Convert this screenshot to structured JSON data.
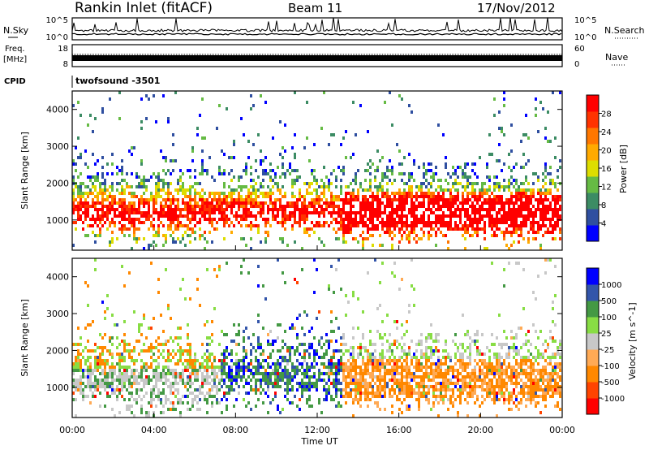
{
  "header": {
    "station": "Rankin Inlet (fitACF)",
    "beam": "Beam 11",
    "date": "17/Nov/2012"
  },
  "nsky_panel": {
    "left_label": "N.Sky",
    "left_ticks": [
      "10^5",
      "10^0"
    ],
    "right_ticks": [
      "10^5",
      "10^0"
    ],
    "right_label": "N.Search"
  },
  "freq_panel": {
    "left_label_1": "Freq.",
    "left_label_2": "[MHz]",
    "left_ticks": [
      "18",
      "8"
    ],
    "right_ticks": [
      "60",
      "0"
    ],
    "right_label": "Nave"
  },
  "cpid": {
    "label": "CPID",
    "value": "twofsound -3501"
  },
  "colors": {
    "power_scale": [
      "#0000ff",
      "#2f4fa0",
      "#3c8c64",
      "#66bb44",
      "#dddd00",
      "#ffaa00",
      "#ff7700",
      "#ff3300",
      "#ff0000"
    ],
    "velocity_scale": [
      "#ff0000",
      "#ff4400",
      "#ff8800",
      "#ffaa55",
      "#c8c8c8",
      "#88dd44",
      "#449944",
      "#3355aa",
      "#0000ff"
    ],
    "frame": "#000000"
  },
  "chart_data": [
    {
      "type": "heatmap",
      "title": "Power",
      "ylabel": "Slant Range [km]",
      "xlabel": "",
      "xlim": [
        "00:00",
        "00:00"
      ],
      "ylim": [
        180,
        4500
      ],
      "y_ticks": [
        "1000",
        "2000",
        "3000",
        "4000"
      ],
      "colorbar": {
        "label": "Power [dB]",
        "ticks": [
          "28",
          "24",
          "20",
          "16",
          "12",
          "8",
          "4"
        ],
        "range": [
          0,
          30
        ]
      }
    },
    {
      "type": "heatmap",
      "title": "Velocity",
      "ylabel": "Slant Range [km]",
      "xlabel": "Time UT",
      "x_ticks": [
        "00:00",
        "04:00",
        "08:00",
        "12:00",
        "16:00",
        "20:00",
        "00:00"
      ],
      "ylim": [
        180,
        4500
      ],
      "y_ticks": [
        "1000",
        "2000",
        "3000",
        "4000"
      ],
      "colorbar": {
        "label": "Velocity [m s^-1]",
        "ticks": [
          "1000",
          "500",
          "100",
          "25",
          "-25",
          "-100",
          "-500",
          "-1000"
        ]
      }
    }
  ]
}
